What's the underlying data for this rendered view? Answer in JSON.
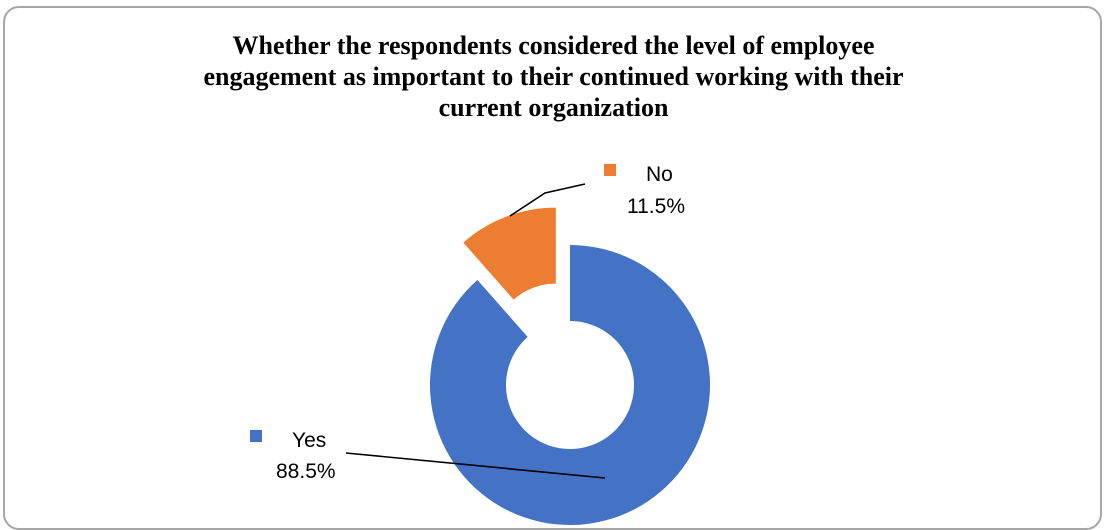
{
  "chart_data": {
    "type": "pie",
    "variant": "exploded-doughnut",
    "title": "Whether the respondents considered the level of employee engagement as important to their continued working with their current organization",
    "title_lines": [
      "Whether the respondents considered the level of employee",
      "engagement as important to their continued working with their",
      "current organization"
    ],
    "slices": [
      {
        "label": "No",
        "value": 11.5,
        "value_label": "11.5%",
        "color": "#ed7d31"
      },
      {
        "label": "Yes",
        "value": 88.5,
        "value_label": "88.5%",
        "color": "#4472c4"
      }
    ],
    "legend": "none"
  }
}
